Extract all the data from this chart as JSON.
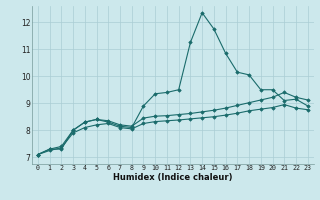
{
  "xlabel": "Humidex (Indice chaleur)",
  "background_color": "#cce8ec",
  "grid_color": "#aacdd4",
  "line_color": "#1a6b6b",
  "xlim": [
    -0.5,
    23.5
  ],
  "ylim": [
    6.75,
    12.6
  ],
  "yticks": [
    7,
    8,
    9,
    10,
    11,
    12
  ],
  "xticks": [
    0,
    1,
    2,
    3,
    4,
    5,
    6,
    7,
    8,
    9,
    10,
    11,
    12,
    13,
    14,
    15,
    16,
    17,
    18,
    19,
    20,
    21,
    22,
    23
  ],
  "series": [
    [
      7.1,
      7.3,
      7.3,
      8.0,
      8.3,
      8.4,
      8.3,
      8.15,
      8.1,
      8.9,
      9.35,
      9.4,
      9.5,
      11.25,
      12.35,
      11.75,
      10.85,
      10.15,
      10.05,
      9.5,
      9.5,
      9.1,
      9.15,
      8.9
    ],
    [
      7.1,
      7.3,
      7.4,
      8.0,
      8.3,
      8.4,
      8.35,
      8.2,
      8.15,
      8.45,
      8.52,
      8.54,
      8.58,
      8.62,
      8.68,
      8.74,
      8.82,
      8.92,
      9.02,
      9.12,
      9.22,
      9.4,
      9.22,
      9.12
    ],
    [
      7.1,
      7.25,
      7.35,
      7.9,
      8.1,
      8.2,
      8.25,
      8.1,
      8.05,
      8.25,
      8.32,
      8.35,
      8.38,
      8.42,
      8.46,
      8.5,
      8.56,
      8.63,
      8.72,
      8.78,
      8.84,
      8.95,
      8.82,
      8.76
    ]
  ]
}
